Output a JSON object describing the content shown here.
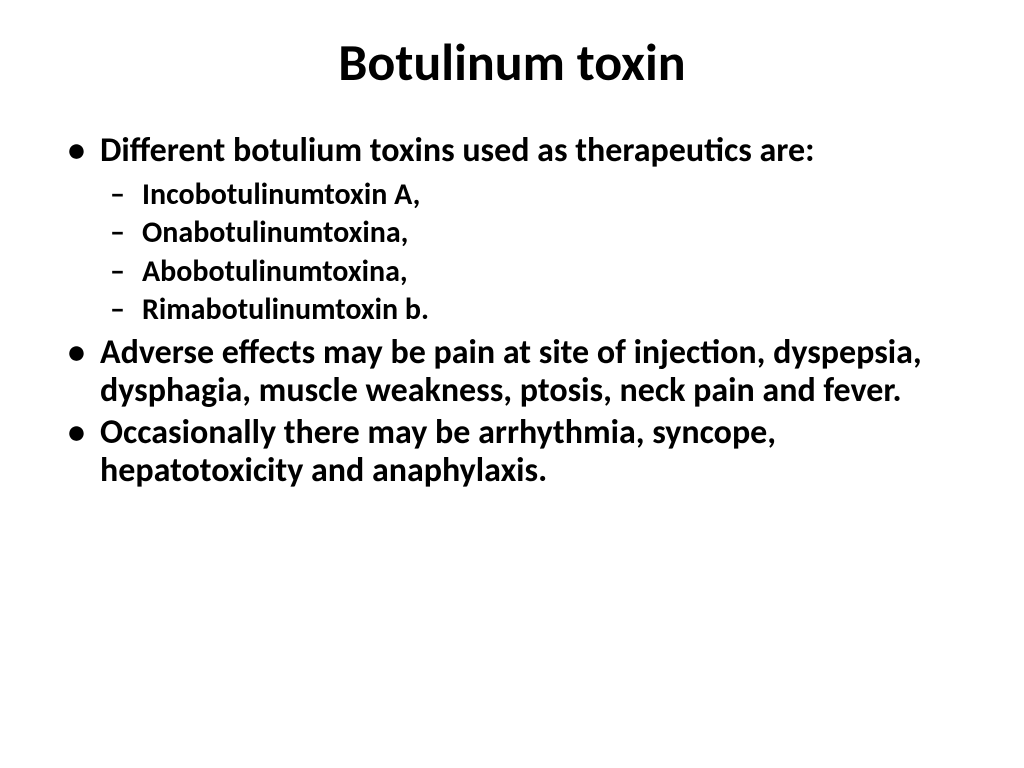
{
  "slide": {
    "title": "Botulinum toxin",
    "title_fontsize": 52,
    "body_fontsize": 34,
    "sub_fontsize": 30,
    "text_color": "#000000",
    "background_color": "#ffffff",
    "bullets": [
      {
        "text": "Different botulium toxins used as therapeutics are:",
        "sub": [
          "Incobotulinumtoxin A,",
          "Onabotulinumtoxina,",
          "Abobotulinumtoxina,",
          "Rimabotulinumtoxin b."
        ]
      },
      {
        "text": "Adverse effects may be pain at site of injection, dyspepsia, dysphagia, muscle weakness, ptosis, neck pain and fever."
      },
      {
        "text": "Occasionally there may be arrhythmia, syncope, hepatotoxicity and anaphylaxis."
      }
    ]
  }
}
